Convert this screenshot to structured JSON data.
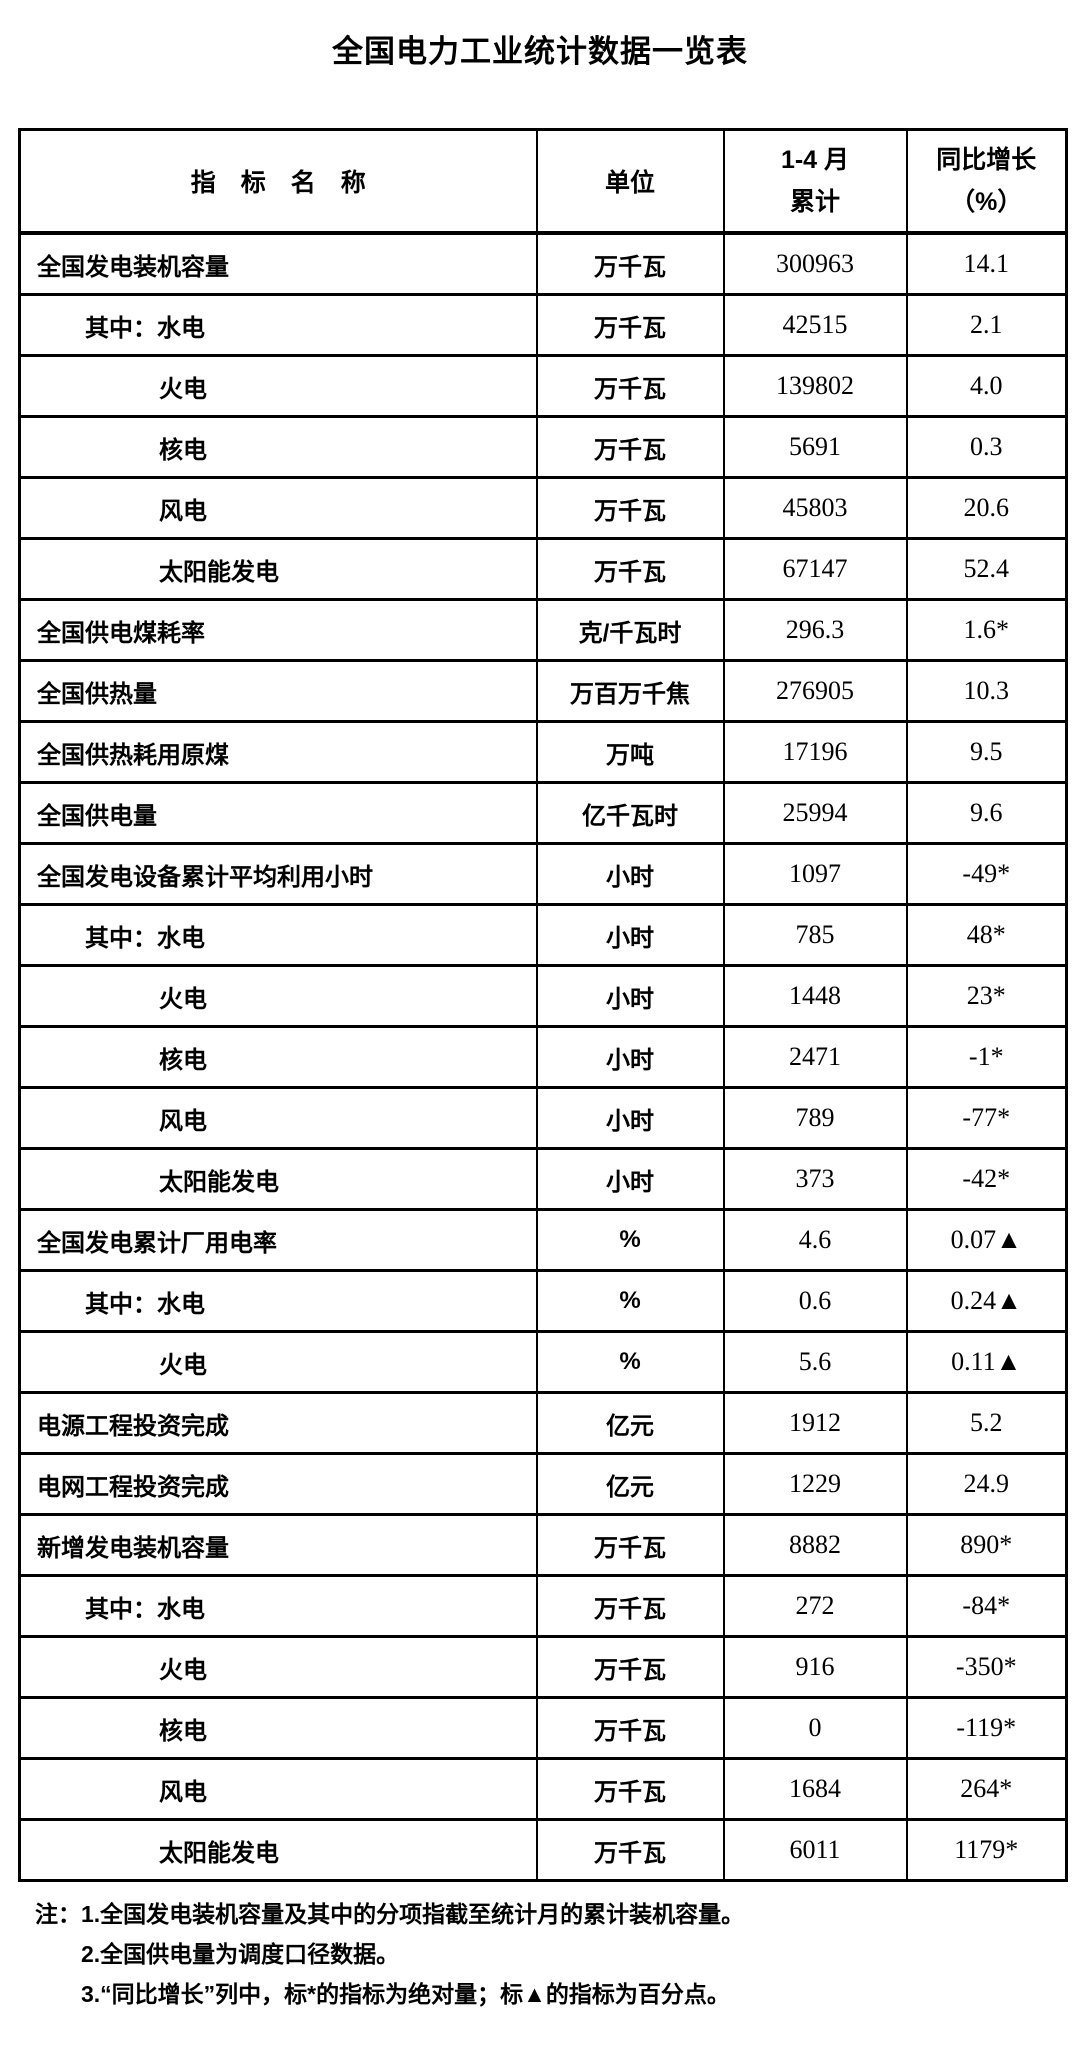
{
  "page": {
    "title": "全国电力工业统计数据一览表"
  },
  "colors": {
    "background": "#ffffff",
    "text": "#000000",
    "border": "#000000"
  },
  "table": {
    "header": {
      "indicator": "指　标　名　称",
      "unit": "单位",
      "period_line1": "1-4 月",
      "period_line2": "累计",
      "yoy_line1": "同比增长",
      "yoy_line2": "（%）"
    },
    "rows": [
      {
        "name": "全国发电装机容量",
        "indent": 0,
        "unit": "万千瓦",
        "value": "300963",
        "yoy": "14.1"
      },
      {
        "name": "其中：水电",
        "indent": 1,
        "unit": "万千瓦",
        "value": "42515",
        "yoy": "2.1"
      },
      {
        "name": "火电",
        "indent": 2,
        "unit": "万千瓦",
        "value": "139802",
        "yoy": "4.0"
      },
      {
        "name": "核电",
        "indent": 2,
        "unit": "万千瓦",
        "value": "5691",
        "yoy": "0.3"
      },
      {
        "name": "风电",
        "indent": 2,
        "unit": "万千瓦",
        "value": "45803",
        "yoy": "20.6"
      },
      {
        "name": "太阳能发电",
        "indent": 2,
        "unit": "万千瓦",
        "value": "67147",
        "yoy": "52.4"
      },
      {
        "name": "全国供电煤耗率",
        "indent": 0,
        "unit": "克/千瓦时",
        "value": "296.3",
        "yoy": "1.6*"
      },
      {
        "name": "全国供热量",
        "indent": 0,
        "unit": "万百万千焦",
        "value": "276905",
        "yoy": "10.3"
      },
      {
        "name": "全国供热耗用原煤",
        "indent": 0,
        "unit": "万吨",
        "value": "17196",
        "yoy": "9.5"
      },
      {
        "name": "全国供电量",
        "indent": 0,
        "unit": "亿千瓦时",
        "value": "25994",
        "yoy": "9.6"
      },
      {
        "name": "全国发电设备累计平均利用小时",
        "indent": 0,
        "unit": "小时",
        "value": "1097",
        "yoy": "-49*"
      },
      {
        "name": "其中：水电",
        "indent": 1,
        "unit": "小时",
        "value": "785",
        "yoy": "48*"
      },
      {
        "name": "火电",
        "indent": 2,
        "unit": "小时",
        "value": "1448",
        "yoy": "23*"
      },
      {
        "name": "核电",
        "indent": 2,
        "unit": "小时",
        "value": "2471",
        "yoy": "-1*"
      },
      {
        "name": "风电",
        "indent": 2,
        "unit": "小时",
        "value": "789",
        "yoy": "-77*"
      },
      {
        "name": "太阳能发电",
        "indent": 2,
        "unit": "小时",
        "value": "373",
        "yoy": "-42*"
      },
      {
        "name": "全国发电累计厂用电率",
        "indent": 0,
        "unit": "%",
        "value": "4.6",
        "yoy": "0.07▲"
      },
      {
        "name": "其中：水电",
        "indent": 1,
        "unit": "%",
        "value": "0.6",
        "yoy": "0.24▲"
      },
      {
        "name": "火电",
        "indent": 2,
        "unit": "%",
        "value": "5.6",
        "yoy": "0.11▲"
      },
      {
        "name": "电源工程投资完成",
        "indent": 0,
        "unit": "亿元",
        "value": "1912",
        "yoy": "5.2"
      },
      {
        "name": "电网工程投资完成",
        "indent": 0,
        "unit": "亿元",
        "value": "1229",
        "yoy": "24.9"
      },
      {
        "name": "新增发电装机容量",
        "indent": 0,
        "unit": "万千瓦",
        "value": "8882",
        "yoy": "890*"
      },
      {
        "name": "其中：水电",
        "indent": 1,
        "unit": "万千瓦",
        "value": "272",
        "yoy": "-84*"
      },
      {
        "name": "火电",
        "indent": 2,
        "unit": "万千瓦",
        "value": "916",
        "yoy": "-350*"
      },
      {
        "name": "核电",
        "indent": 2,
        "unit": "万千瓦",
        "value": "0",
        "yoy": "-119*"
      },
      {
        "name": "风电",
        "indent": 2,
        "unit": "万千瓦",
        "value": "1684",
        "yoy": "264*"
      },
      {
        "name": "太阳能发电",
        "indent": 2,
        "unit": "万千瓦",
        "value": "6011",
        "yoy": "1179*"
      }
    ]
  },
  "notes": {
    "label": "注：",
    "items": [
      "1.全国发电装机容量及其中的分项指截至统计月的累计装机容量。",
      "2.全国供电量为调度口径数据。",
      "3.“同比增长”列中，标*的指标为绝对量；标▲的指标为百分点。"
    ]
  }
}
